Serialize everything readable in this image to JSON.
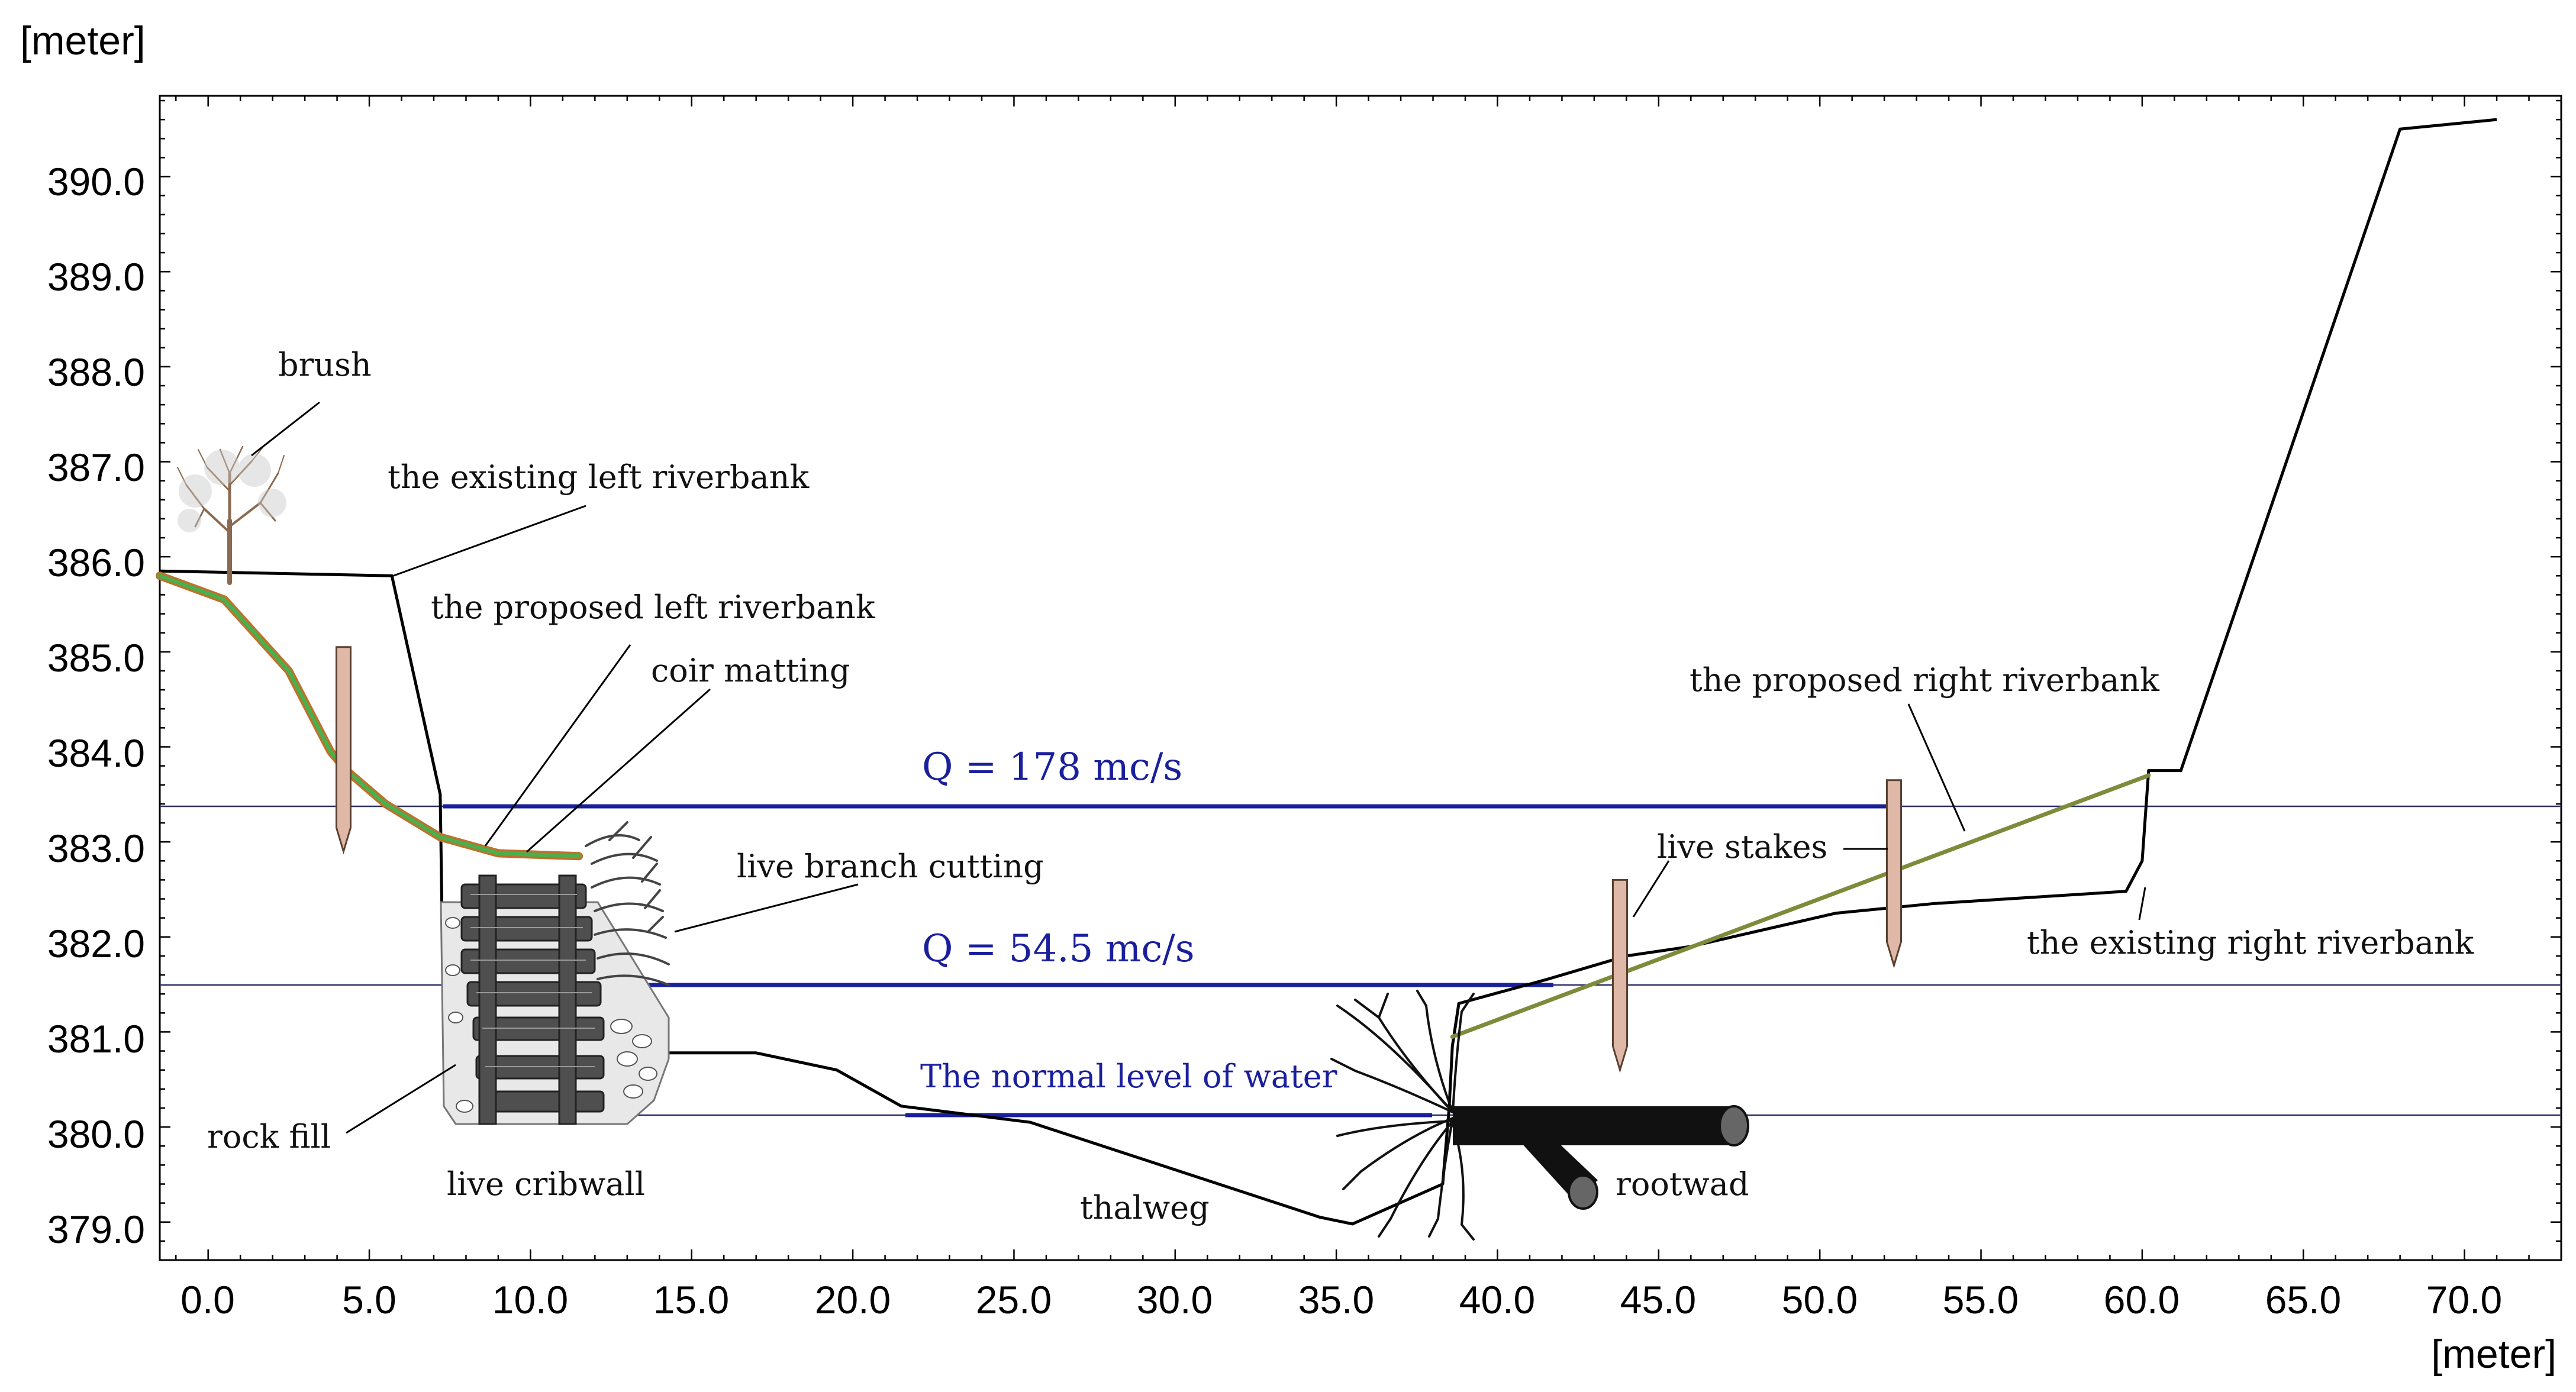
{
  "colors": {
    "ground": "#000000",
    "water": "#1a1f9c",
    "reference_line": "#2a2f6a",
    "green": "#4cae4c",
    "orange": "#c0702a",
    "olive": "#7d8b3a",
    "stake": "#e0b8a8"
  },
  "axes": {
    "y_unit": "[meter]",
    "x_unit": "[meter]",
    "x_ticks": [
      "0.0",
      "5.0",
      "10.0",
      "15.0",
      "20.0",
      "25.0",
      "30.0",
      "35.0",
      "40.0",
      "45.0",
      "50.0",
      "55.0",
      "60.0",
      "65.0",
      "70.0"
    ],
    "y_ticks": [
      "390.0",
      "389.0",
      "388.0",
      "387.0",
      "386.0",
      "385.0",
      "384.0",
      "383.0",
      "382.0",
      "381.0",
      "380.0",
      "379.0"
    ],
    "xlim": [
      -1.5,
      73.0
    ],
    "ylim": [
      378.6,
      390.85
    ]
  },
  "water_levels": [
    {
      "label": "Q = 178 mc/s",
      "elevation": 383.42
    },
    {
      "label": "Q = 54.5 mc/s",
      "elevation": 381.57
    },
    {
      "label": "The normal level of water",
      "elevation": 380.22
    }
  ],
  "profiles": {
    "existing_left": [
      [
        -1.5,
        385.85
      ],
      [
        5.7,
        385.8
      ],
      [
        7.2,
        383.5
      ],
      [
        7.3,
        381.2
      ],
      [
        8.0,
        380.1
      ]
    ],
    "existing_main": [
      [
        14.0,
        380.78
      ],
      [
        17.0,
        380.78
      ],
      [
        19.5,
        380.6
      ],
      [
        21.5,
        380.22
      ],
      [
        25.5,
        380.05
      ],
      [
        30.0,
        379.55
      ],
      [
        34.5,
        379.05
      ],
      [
        35.5,
        378.98
      ],
      [
        38.3,
        379.4
      ],
      [
        38.5,
        380.2
      ],
      [
        38.6,
        380.85
      ],
      [
        38.8,
        381.3
      ],
      [
        41.5,
        381.55
      ],
      [
        44.0,
        381.8
      ],
      [
        46.0,
        381.9
      ],
      [
        50.5,
        382.25
      ],
      [
        53.5,
        382.35
      ],
      [
        59.5,
        382.48
      ],
      [
        60.0,
        382.8
      ],
      [
        60.2,
        383.75
      ],
      [
        61.2,
        383.75
      ],
      [
        68.0,
        390.5
      ],
      [
        71.0,
        390.6
      ]
    ],
    "proposed_left": [
      [
        -1.5,
        385.8
      ],
      [
        0.5,
        385.55
      ],
      [
        2.5,
        384.8
      ],
      [
        3.8,
        383.95
      ],
      [
        4.3,
        383.75
      ],
      [
        5.5,
        383.4
      ],
      [
        7.2,
        383.05
      ],
      [
        9.0,
        382.88
      ],
      [
        11.5,
        382.85
      ]
    ],
    "proposed_right": [
      [
        38.6,
        380.95
      ],
      [
        60.2,
        383.7
      ]
    ]
  },
  "stakes": [
    {
      "x": 4.2,
      "top": 385.05,
      "bottom": 382.9
    },
    {
      "x": 43.8,
      "top": 382.6,
      "bottom": 380.6
    },
    {
      "x": 52.3,
      "top": 383.65,
      "bottom": 381.7
    }
  ],
  "annotations": [
    {
      "label": "brush"
    },
    {
      "label": "the existing left riverbank"
    },
    {
      "label": "the proposed left riverbank"
    },
    {
      "label": "coir matting"
    },
    {
      "label": "live branch cutting"
    },
    {
      "label": "rock fill"
    },
    {
      "label": "live cribwall"
    },
    {
      "label": "thalweg"
    },
    {
      "label": "rootwad"
    },
    {
      "label": "live stakes"
    },
    {
      "label": "the proposed right riverbank"
    },
    {
      "label": "the existing right riverbank"
    }
  ]
}
